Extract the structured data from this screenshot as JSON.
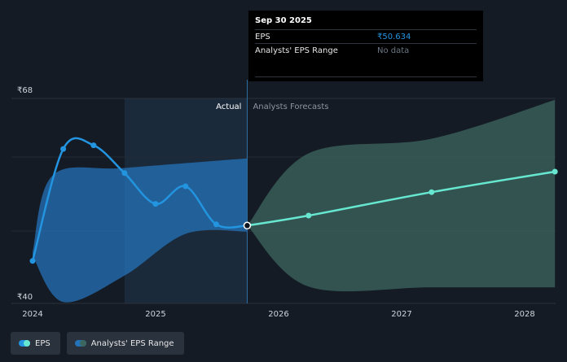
{
  "chart_data": {
    "type": "line",
    "y_axis": {
      "min": 40,
      "max": 68,
      "top_label": "₹68",
      "bottom_label": "₹40"
    },
    "x_ticks": [
      "2024",
      "2025",
      "2026",
      "2027",
      "2028"
    ],
    "region_labels": {
      "actual": "Actual",
      "forecast": "Analysts Forecasts"
    },
    "series": [
      {
        "name": "EPS",
        "color": "#2394df",
        "points": [
          {
            "date": "2024-01-01",
            "value": 45.8
          },
          {
            "date": "2024-04-01",
            "value": 61.1
          },
          {
            "date": "2024-06-30",
            "value": 61.6
          },
          {
            "date": "2024-09-30",
            "value": 57.8
          },
          {
            "date": "2024-12-31",
            "value": 53.6
          },
          {
            "date": "2025-03-31",
            "value": 56.0
          },
          {
            "date": "2025-06-30",
            "value": 50.8
          },
          {
            "date": "2025-09-30",
            "value": 50.634
          }
        ]
      },
      {
        "name": "EPS forecast",
        "color": "#67e6d0",
        "points": [
          {
            "date": "2025-09-30",
            "value": 50.634
          },
          {
            "date": "2026-03-31",
            "value": 52.0
          },
          {
            "date": "2027-03-31",
            "value": 55.2
          },
          {
            "date": "2028-03-31",
            "value": 58.0
          }
        ]
      }
    ],
    "range_band_actual": {
      "name": "Analysts' EPS Range",
      "color": "#2473b8",
      "upper": [
        {
          "date": "2024-01-01",
          "value": 47.0
        },
        {
          "date": "2024-03-01",
          "value": 57.5
        },
        {
          "date": "2024-09-30",
          "value": 58.5
        },
        {
          "date": "2025-09-30",
          "value": 59.8
        }
      ],
      "lower": [
        {
          "date": "2024-01-01",
          "value": 46.5
        },
        {
          "date": "2024-04-01",
          "value": 40.2
        },
        {
          "date": "2024-09-30",
          "value": 43.8
        },
        {
          "date": "2025-03-31",
          "value": 49.5
        },
        {
          "date": "2025-09-30",
          "value": 49.8
        }
      ]
    },
    "range_band_forecast": {
      "color": "#3c675f",
      "upper": [
        {
          "date": "2025-09-30",
          "value": 50.634
        },
        {
          "date": "2026-03-31",
          "value": 60.5
        },
        {
          "date": "2027-03-31",
          "value": 62.5
        },
        {
          "date": "2028-03-31",
          "value": 67.8
        }
      ],
      "lower": [
        {
          "date": "2025-09-30",
          "value": 50.634
        },
        {
          "date": "2026-03-31",
          "value": 42.3
        },
        {
          "date": "2027-03-31",
          "value": 42.2
        },
        {
          "date": "2028-03-31",
          "value": 42.2
        }
      ]
    },
    "grid": true,
    "legend_placement": "bottom-left"
  },
  "tooltip": {
    "date": "Sep 30 2025",
    "rows": [
      {
        "label": "EPS",
        "value": "₹50.634"
      },
      {
        "label": "Analysts' EPS Range",
        "value": "No data"
      }
    ]
  },
  "legend": [
    {
      "label": "EPS",
      "bar_color": "#2394df",
      "dot_color": "#67e6d0"
    },
    {
      "label": "Analysts' EPS Range",
      "bar_color": "#2473b8",
      "dot_color": "#3c675f"
    }
  ]
}
